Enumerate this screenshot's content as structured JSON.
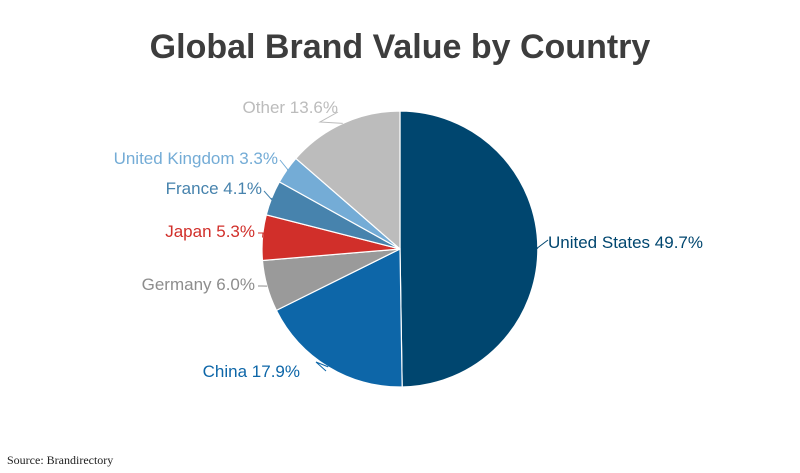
{
  "chart_data": {
    "type": "pie",
    "title": "Global Brand Value by Country",
    "slices": [
      {
        "label": "United States 49.7%",
        "value": 49.7,
        "color": "#00466f"
      },
      {
        "label": "China 17.9%",
        "value": 17.9,
        "color": "#0d66a8"
      },
      {
        "label": "Germany 6.0%",
        "value": 6.0,
        "color": "#9a9a9a"
      },
      {
        "label": "Japan 5.3%",
        "value": 5.3,
        "color": "#d12f2a"
      },
      {
        "label": "France 4.1%",
        "value": 4.1,
        "color": "#4783ad"
      },
      {
        "label": "United Kingdom 3.3%",
        "value": 3.3,
        "color": "#74acd6"
      },
      {
        "label": "Other 13.6%",
        "value": 13.6,
        "color": "#bcbcbc"
      }
    ],
    "label_colors": [
      "#00466f",
      "#0d66a8",
      "#8d8d8d",
      "#d12f2a",
      "#4783ad",
      "#74acd6",
      "#bcbcbc"
    ],
    "start": "12 o'clock",
    "direction": "clockwise",
    "legend": "none"
  },
  "source": "Source: Brandirectory"
}
